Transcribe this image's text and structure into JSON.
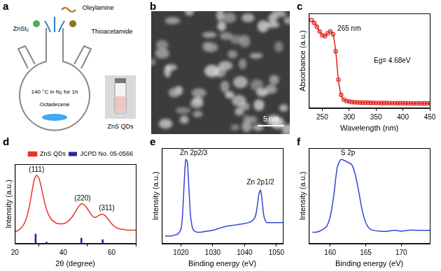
{
  "diagram": {
    "panel": "a",
    "reagents": [
      "Oleylamine",
      "ZnSt₂",
      "Thioacetamide"
    ],
    "condition": "140 °C in N₂ for 1h",
    "solvent": "Octadecene",
    "product": "ZnS QDs"
  },
  "image": {
    "panel": "b",
    "scale_bar": "5 nm"
  },
  "chart_data": [
    {
      "panel": "c",
      "type": "line",
      "x_label": "Wavelength (nm)",
      "y_label": "Absorbance (a.u.)",
      "x": [
        230,
        235,
        240,
        245,
        250,
        255,
        260,
        265,
        270,
        275,
        280,
        285,
        290,
        295,
        300,
        305,
        310,
        315,
        320,
        325,
        330,
        335,
        340,
        345,
        350,
        355,
        360,
        365,
        370,
        375,
        380,
        385,
        390,
        395,
        400,
        405,
        410,
        415,
        420,
        425,
        430,
        435,
        440,
        445,
        450
      ],
      "values": [
        0.93,
        0.9,
        0.86,
        0.81,
        0.77,
        0.76,
        0.79,
        0.81,
        0.78,
        0.6,
        0.3,
        0.14,
        0.09,
        0.075,
        0.07,
        0.065,
        0.062,
        0.06,
        0.059,
        0.058,
        0.057,
        0.057,
        0.056,
        0.056,
        0.055,
        0.055,
        0.054,
        0.054,
        0.054,
        0.053,
        0.053,
        0.053,
        0.052,
        0.052,
        0.052,
        0.052,
        0.051,
        0.051,
        0.051,
        0.051,
        0.05,
        0.05,
        0.05,
        0.05,
        0.05
      ],
      "color": "#e0201b",
      "marker": "circle",
      "line_style": "solid",
      "xlim": [
        225,
        450
      ],
      "xticks": [
        250,
        300,
        350,
        400,
        450
      ],
      "ylim": [
        0,
        1
      ],
      "grid": false,
      "tick_labels": "x",
      "annotations": [
        {
          "text": "265 nm",
          "x": 300,
          "y": 0.84
        },
        {
          "text": "Eg= 4.68eV",
          "x": 380,
          "y": 0.5
        }
      ]
    },
    {
      "panel": "d",
      "type": "line",
      "x_label": "2θ (degree)",
      "y_label": "Intensity (a.u.)",
      "series": [
        {
          "name": "ZnS QDs",
          "type": "line",
          "color": "#e8332a",
          "line_style": "solid",
          "x": [
            20,
            21,
            22,
            23,
            24,
            25,
            26,
            27,
            28,
            29,
            30,
            31,
            32,
            33,
            34,
            35,
            36,
            37,
            38,
            39,
            40,
            41,
            42,
            43,
            44,
            45,
            46,
            47,
            48,
            49,
            50,
            51,
            52,
            53,
            54,
            55,
            56,
            57,
            58,
            59,
            60,
            61,
            62,
            63,
            64,
            65,
            66,
            67,
            68,
            69,
            70
          ],
          "values": [
            0.15,
            0.16,
            0.18,
            0.21,
            0.26,
            0.34,
            0.47,
            0.64,
            0.8,
            0.86,
            0.82,
            0.7,
            0.56,
            0.44,
            0.36,
            0.31,
            0.28,
            0.26,
            0.25,
            0.25,
            0.25,
            0.26,
            0.28,
            0.31,
            0.35,
            0.4,
            0.45,
            0.49,
            0.5,
            0.48,
            0.44,
            0.39,
            0.35,
            0.33,
            0.34,
            0.36,
            0.37,
            0.36,
            0.33,
            0.29,
            0.25,
            0.22,
            0.2,
            0.19,
            0.18,
            0.18,
            0.17,
            0.17,
            0.17,
            0.17,
            0.17
          ]
        },
        {
          "name": "JCPD No. 05-0566",
          "type": "bar",
          "color": "#1f2a9e",
          "x": [
            28.6,
            33.1,
            47.5,
            56.3
          ],
          "values": [
            0.12,
            0.02,
            0.07,
            0.05
          ]
        }
      ],
      "xlim": [
        20,
        70
      ],
      "xticks": [
        20,
        40,
        60
      ],
      "ylim": [
        0,
        1
      ],
      "grid": false,
      "tick_labels": "x",
      "legend": "top",
      "annotations": [
        {
          "text": "(111)",
          "x": 29,
          "y": 0.93
        },
        {
          "text": "(220)",
          "x": 48,
          "y": 0.57
        },
        {
          "text": "(311)",
          "x": 58,
          "y": 0.44
        }
      ]
    },
    {
      "panel": "e",
      "type": "line",
      "x_label": "Binding energy (eV)",
      "y_label": "Intensity (a.u.)",
      "x": [
        1015,
        1016,
        1017,
        1018,
        1019,
        1020,
        1020.5,
        1021,
        1021.5,
        1022,
        1022.5,
        1023,
        1023.5,
        1024,
        1025,
        1026,
        1028,
        1030,
        1032,
        1034,
        1036,
        1038,
        1040,
        1042,
        1043,
        1043.5,
        1044,
        1044.5,
        1045,
        1045.5,
        1046,
        1046.5,
        1047,
        1048,
        1049,
        1050,
        1051,
        1052
      ],
      "values": [
        0.08,
        0.08,
        0.08,
        0.09,
        0.1,
        0.15,
        0.3,
        0.62,
        0.88,
        0.86,
        0.58,
        0.3,
        0.18,
        0.14,
        0.12,
        0.12,
        0.13,
        0.14,
        0.16,
        0.18,
        0.19,
        0.2,
        0.21,
        0.23,
        0.26,
        0.3,
        0.4,
        0.52,
        0.56,
        0.45,
        0.3,
        0.24,
        0.22,
        0.22,
        0.22,
        0.22,
        0.22,
        0.22
      ],
      "color": "#3346d3",
      "line_style": "solid",
      "xlim": [
        1014,
        1052
      ],
      "xticks": [
        1020,
        1030,
        1040,
        1050
      ],
      "ylim": [
        0,
        1
      ],
      "grid": false,
      "tick_labels": "x",
      "annotations": [
        {
          "text": "Zn 2p2/3",
          "x": 1024,
          "y": 0.95
        },
        {
          "text": "Zn 2p1/2",
          "x": 1045,
          "y": 0.64
        }
      ]
    },
    {
      "panel": "f",
      "type": "line",
      "x_label": "Binding energy (eV)",
      "y_label": "Intensity (a.u.)",
      "x": [
        157.5,
        158,
        158.5,
        159,
        159.5,
        160,
        160.5,
        161,
        161.5,
        162,
        162.5,
        163,
        163.5,
        164,
        164.5,
        165,
        165.5,
        166,
        167,
        168,
        169,
        170,
        171,
        172,
        173,
        174
      ],
      "values": [
        0.12,
        0.12,
        0.13,
        0.15,
        0.18,
        0.28,
        0.5,
        0.8,
        0.88,
        0.87,
        0.85,
        0.83,
        0.73,
        0.55,
        0.35,
        0.22,
        0.16,
        0.14,
        0.13,
        0.13,
        0.14,
        0.13,
        0.14,
        0.14,
        0.14,
        0.14
      ],
      "color": "#3346d3",
      "line_style": "solid",
      "xlim": [
        157,
        174
      ],
      "xticks": [
        160,
        165,
        170
      ],
      "ylim": [
        0,
        1
      ],
      "grid": false,
      "tick_labels": "x",
      "annotations": [
        {
          "text": "S 2p",
          "x": 162.5,
          "y": 0.95
        }
      ]
    }
  ]
}
